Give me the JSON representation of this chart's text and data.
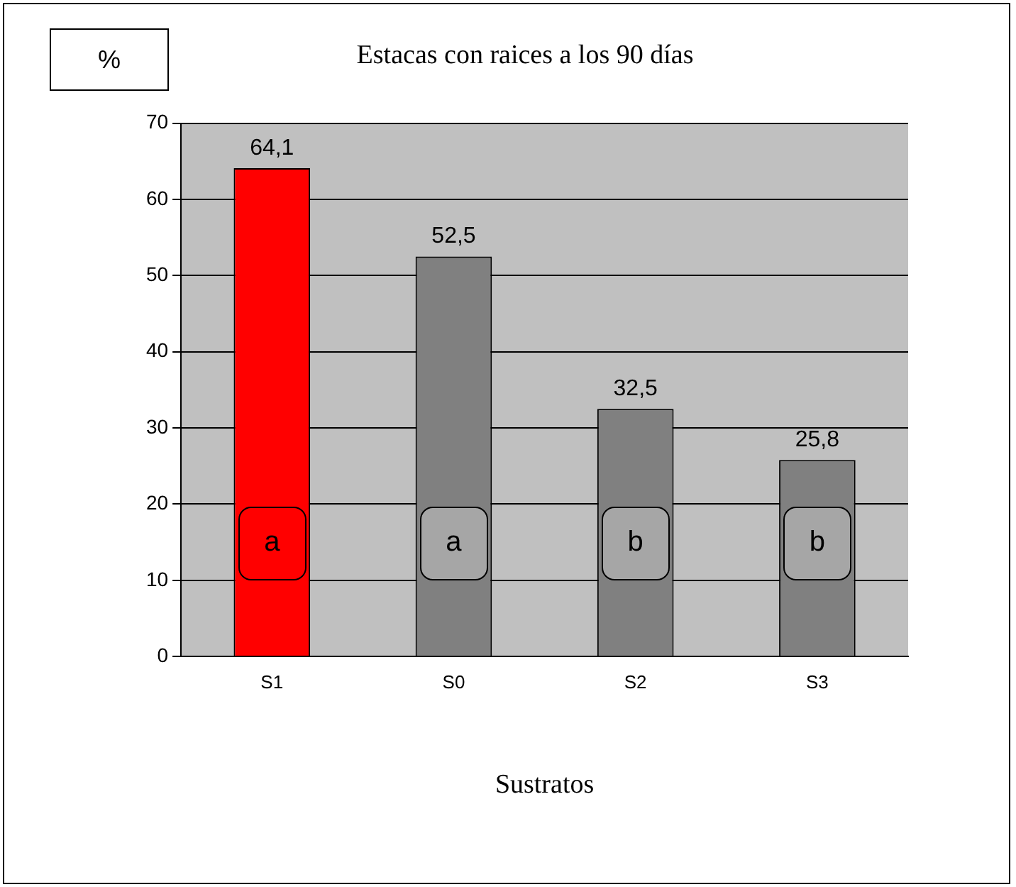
{
  "chart_data": {
    "type": "bar",
    "title": "Estacas con raices a los 90 días",
    "ylabel": "%",
    "xlabel": "Sustratos",
    "categories": [
      "S1",
      "S0",
      "S2",
      "S3"
    ],
    "values": [
      64.1,
      52.5,
      32.5,
      25.8
    ],
    "colors": [
      "#ff0000",
      "#808080",
      "#808080",
      "#808080"
    ],
    "value_labels": [
      "64,1",
      "52,5",
      "32,5",
      "25,8"
    ],
    "ylim": [
      0,
      70
    ],
    "yticks": [
      0,
      10,
      20,
      30,
      40,
      50,
      60,
      70
    ],
    "grid": "y",
    "legend": false,
    "annotations": [
      "a",
      "a",
      "b",
      "b"
    ]
  }
}
